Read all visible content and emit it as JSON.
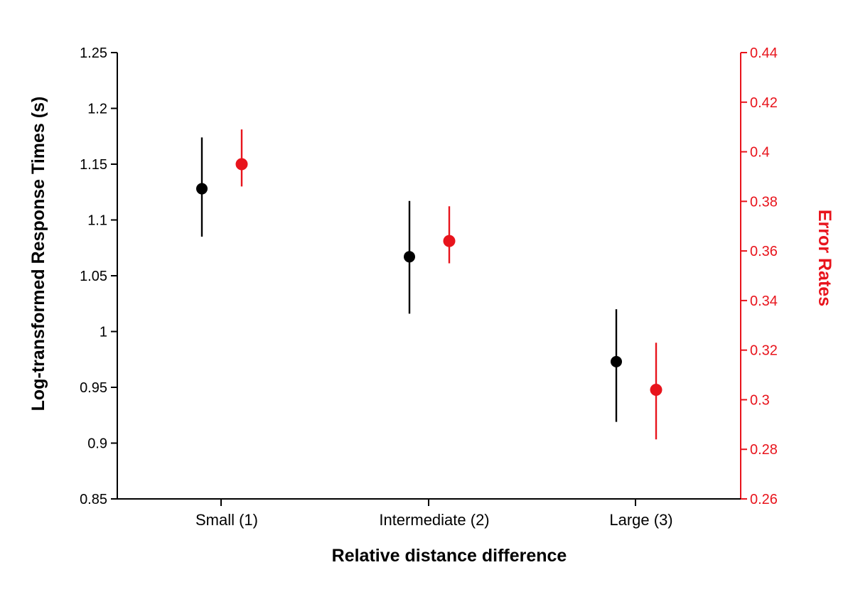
{
  "colors": {
    "rt_series": "#000000",
    "error_series": "#e8141c",
    "axis_left": "#000000",
    "axis_right": "#e8141c"
  },
  "chart_data": {
    "type": "scatter",
    "title": "",
    "xlabel": "Relative distance difference",
    "ylabel": "Log-transformed Response Times (s)",
    "y2label": "Error Rates",
    "categories": [
      "Small (1)",
      "Intermediate (2)",
      "Large (3)"
    ],
    "ylim": [
      0.85,
      1.25
    ],
    "yticks": [
      "0.85",
      "0.9",
      "0.95",
      "1",
      "1.05",
      "1.1",
      "1.15",
      "1.2",
      "1.25"
    ],
    "y2lim": [
      0.26,
      0.44
    ],
    "y2ticks": [
      "0.26",
      "0.28",
      "0.3",
      "0.32",
      "0.34",
      "0.36",
      "0.38",
      "0.4",
      "0.42",
      "0.44"
    ],
    "grid": false,
    "series": [
      {
        "name": "Log-transformed Response Times (s)",
        "axis": "left",
        "values": [
          1.128,
          1.067,
          0.973
        ],
        "err_low": [
          1.085,
          1.016,
          0.919
        ],
        "err_high": [
          1.174,
          1.117,
          1.02
        ]
      },
      {
        "name": "Error Rates",
        "axis": "right",
        "values": [
          0.395,
          0.364,
          0.304
        ],
        "err_low": [
          0.386,
          0.355,
          0.284
        ],
        "err_high": [
          0.409,
          0.378,
          0.323
        ]
      }
    ]
  }
}
